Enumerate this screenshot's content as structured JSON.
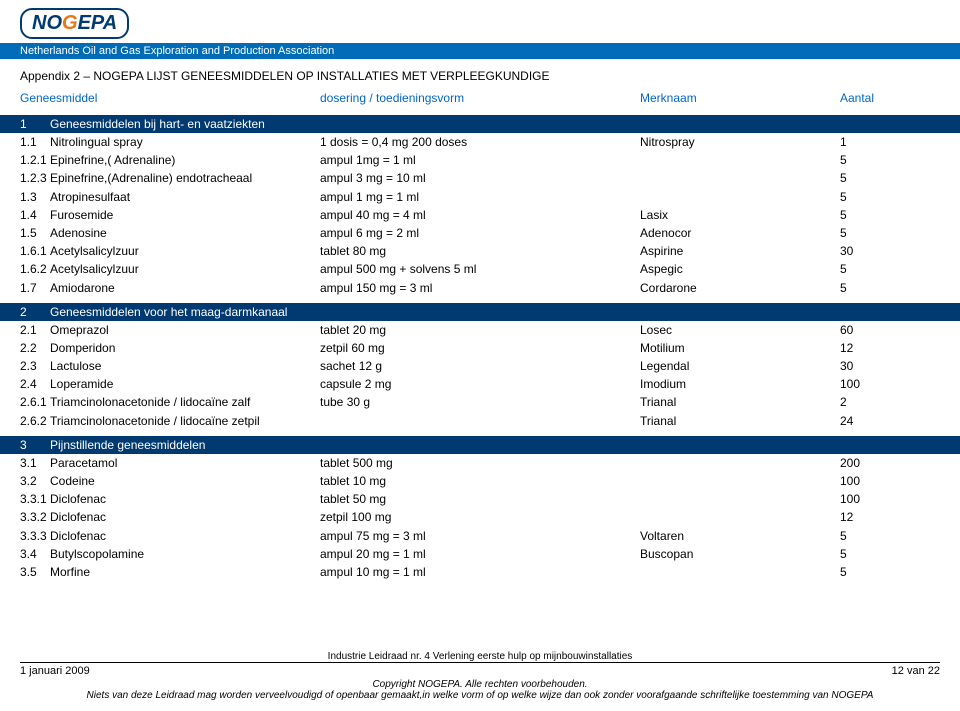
{
  "logo": {
    "n": "N",
    "o1": "O",
    "g": "G",
    "e": "E",
    "p": "P",
    "a": "A"
  },
  "banner": "Netherlands Oil and Gas Exploration and Production Association",
  "title": "Appendix 2 – NOGEPA LIJST GENEESMIDDELEN OP INSTALLATIES MET VERPLEEGKUNDIGE",
  "headers": {
    "c1": "Geneesmiddel",
    "c2": "dosering / toedieningsvorm",
    "c3": "Merknaam",
    "c4": "Aantal"
  },
  "sections": [
    {
      "num": "1",
      "title": "Geneesmiddelen bij hart- en vaatziekten",
      "rows": [
        {
          "num": "1.1",
          "name": "Nitrolingual spray",
          "dose": "1 dosis = 0,4 mg  200 doses",
          "brand": "Nitrospray",
          "qty": "1"
        },
        {
          "num": "1.2.1",
          "name": "Epinefrine,( Adrenaline)",
          "dose": "ampul 1mg = 1 ml",
          "brand": "",
          "qty": "5"
        },
        {
          "num": "1.2.3",
          "name": "Epinefrine,(Adrenaline) endotracheaal",
          "dose": "ampul 3 mg = 10 ml",
          "brand": "",
          "qty": "5"
        },
        {
          "num": "1.3",
          "name": "Atropinesulfaat",
          "dose": "ampul 1 mg = 1 ml",
          "brand": "",
          "qty": "5"
        },
        {
          "num": "1.4",
          "name": "Furosemide",
          "dose": "ampul  40 mg = 4 ml",
          "brand": "Lasix",
          "qty": "5"
        },
        {
          "num": "1.5",
          "name": "Adenosine",
          "dose": "ampul 6 mg = 2 ml",
          "brand": "Adenocor",
          "qty": "5"
        },
        {
          "num": "1.6.1",
          "name": "Acetylsalicylzuur",
          "dose": "tablet 80 mg",
          "brand": "Aspirine",
          "qty": "30"
        },
        {
          "num": "1.6.2",
          "name": "Acetylsalicylzuur",
          "dose": "ampul 500 mg + solvens 5 ml",
          "brand": "Aspegic",
          "qty": "5"
        },
        {
          "num": "1.7",
          "name": "Amiodarone",
          "dose": "ampul 150 mg = 3 ml",
          "brand": "Cordarone",
          "qty": "5"
        }
      ]
    },
    {
      "num": "2",
      "title": "Geneesmiddelen voor het maag-darmkanaal",
      "rows": [
        {
          "num": "2.1",
          "name": "Omeprazol",
          "dose": "tablet 20 mg",
          "brand": "Losec",
          "qty": "60"
        },
        {
          "num": "2.2",
          "name": "Domperidon",
          "dose": "zetpil 60 mg",
          "brand": "Motilium",
          "qty": "12"
        },
        {
          "num": "2.3",
          "name": "Lactulose",
          "dose": "sachet 12 g",
          "brand": "Legendal",
          "qty": "30"
        },
        {
          "num": "2.4",
          "name": "Loperamide",
          "dose": "capsule 2 mg",
          "brand": "Imodium",
          "qty": "100"
        },
        {
          "num": "2.6.1",
          "name": "Triamcinolonacetonide / lidocaïne zalf",
          "dose": "tube 30 g",
          "brand": "Trianal",
          "qty": "2"
        },
        {
          "num": "2.6.2",
          "name": "Triamcinolonacetonide / lidocaïne zetpil",
          "dose": "",
          "brand": "Trianal",
          "qty": "24"
        }
      ]
    },
    {
      "num": "3",
      "title": "Pijnstillende geneesmiddelen",
      "rows": [
        {
          "num": "3.1",
          "name": "Paracetamol",
          "dose": "tablet 500 mg",
          "brand": "",
          "qty": "200"
        },
        {
          "num": "3.2",
          "name": "Codeine",
          "dose": "tablet 10 mg",
          "brand": "",
          "qty": "100"
        },
        {
          "num": "3.3.1",
          "name": "Diclofenac",
          "dose": "tablet 50 mg",
          "brand": "",
          "qty": "100"
        },
        {
          "num": "3.3.2",
          "name": "Diclofenac",
          "dose": "zetpil 100 mg",
          "brand": "",
          "qty": "12"
        },
        {
          "num": "3.3.3",
          "name": "Diclofenac",
          "dose": "ampul 75 mg = 3 ml",
          "brand": "Voltaren",
          "qty": "5"
        },
        {
          "num": "3.4",
          "name": "Butylscopolamine",
          "dose": "ampul 20 mg = 1 ml",
          "brand": "Buscopan",
          "qty": "5"
        },
        {
          "num": "3.5",
          "name": "Morfine",
          "dose": "ampul 10 mg = 1 ml",
          "brand": "",
          "qty": "5"
        }
      ]
    }
  ],
  "footer": {
    "date": "1 januari 2009",
    "doc": "Industrie Leidraad nr. 4 Verlening eerste hulp op mijnbouwinstallaties",
    "page": "12 van 22",
    "copyright": "Copyright NOGEPA. Alle rechten voorbehouden.",
    "disclaimer": "Niets van deze Leidraad mag worden verveelvoudigd of openbaar gemaakt,in welke vorm of op welke wijze dan ook zonder voorafgaande schriftelijke toestemming van NOGEPA"
  }
}
